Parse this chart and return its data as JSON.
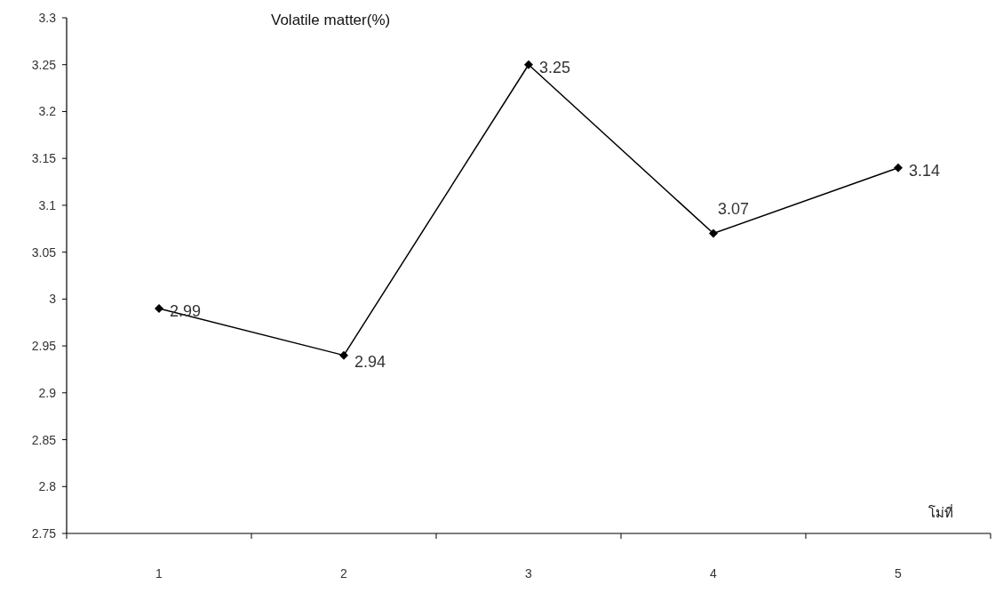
{
  "chart_data": {
    "type": "line",
    "ylabel": "Volatile matter(%)",
    "xlabel": "โม่ที่",
    "categories": [
      "1",
      "2",
      "3",
      "4",
      "5"
    ],
    "series": [
      {
        "color": "#000000",
        "values": [
          2.99,
          2.94,
          3.25,
          3.07,
          3.14
        ]
      }
    ],
    "ylim": [
      2.75,
      3.3
    ],
    "yticks": [
      2.75,
      2.8,
      2.85,
      2.9,
      2.95,
      3,
      3.05,
      3.1,
      3.15,
      3.2,
      3.25,
      3.3
    ],
    "data_labels": true,
    "marker": "diamond",
    "line_style": "solid",
    "grid": false
  }
}
